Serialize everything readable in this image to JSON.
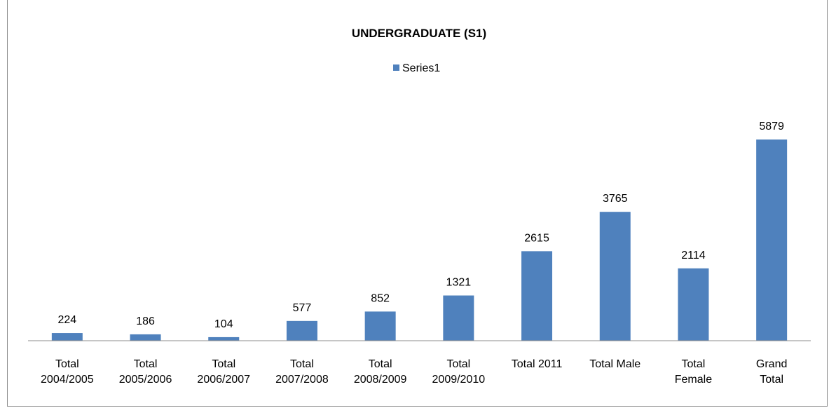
{
  "chart_data": {
    "type": "bar",
    "title": "UNDERGRADUATE (S1)",
    "categories": [
      "Total\n2004/2005",
      "Total\n2005/2006",
      "Total\n2006/2007",
      "Total\n2007/2008",
      "Total\n2008/2009",
      "Total\n2009/2010",
      "Total 2011",
      "Total Male",
      "Total\nFemale",
      "Grand\nTotal"
    ],
    "series": [
      {
        "name": "Series1",
        "color": "#4f81bd",
        "values": [
          224,
          186,
          104,
          577,
          852,
          1321,
          2615,
          3765,
          2114,
          5879
        ]
      }
    ],
    "legend": "top",
    "grid": false
  }
}
